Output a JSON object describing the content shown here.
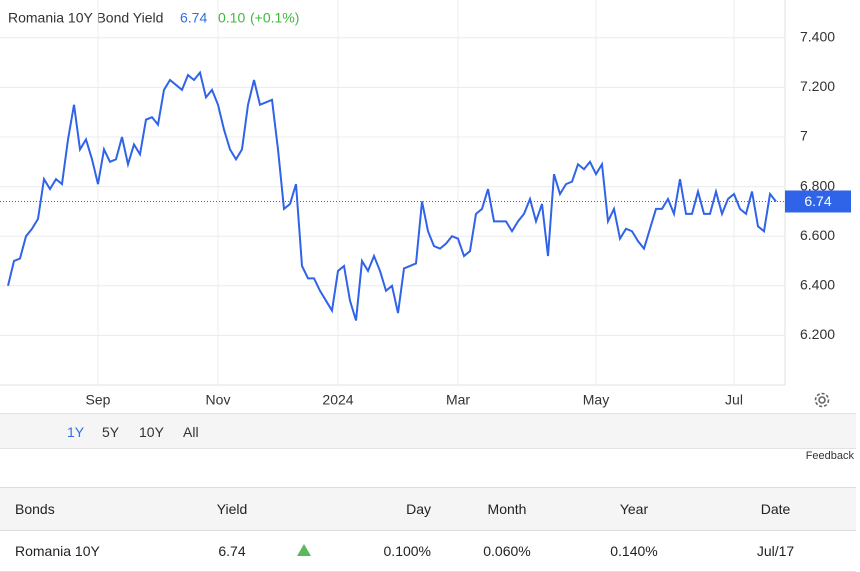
{
  "chart_data": {
    "type": "line",
    "title": "Romania 10Y Bond Yield",
    "price": "6.74",
    "change": "0.10",
    "change_pct": "(+0.1%)",
    "categories": [
      null,
      null,
      null,
      null,
      null,
      null,
      null,
      null,
      null,
      null,
      null,
      null,
      null,
      null,
      null,
      "Sep",
      null,
      null,
      null,
      null,
      null,
      null,
      null,
      null,
      null,
      null,
      null,
      null,
      null,
      null,
      null,
      null,
      null,
      null,
      null,
      "Nov",
      null,
      null,
      null,
      null,
      null,
      null,
      null,
      null,
      null,
      null,
      null,
      null,
      null,
      null,
      null,
      null,
      null,
      null,
      null,
      "2024",
      null,
      null,
      null,
      null,
      null,
      null,
      null,
      null,
      null,
      null,
      null,
      null,
      null,
      null,
      null,
      null,
      null,
      null,
      null,
      "Mar",
      null,
      null,
      null,
      null,
      null,
      null,
      null,
      null,
      null,
      null,
      null,
      null,
      null,
      null,
      null,
      null,
      null,
      null,
      null,
      null,
      null,
      null,
      "May",
      null,
      null,
      null,
      null,
      null,
      null,
      null,
      null,
      null,
      null,
      null,
      null,
      null,
      null,
      null,
      null,
      null,
      null,
      null,
      null,
      null,
      null,
      "Jul",
      null,
      null,
      null,
      null,
      null,
      null,
      null
    ],
    "series": [
      {
        "name": "Romania 10Y",
        "color": "#2f63e8",
        "values": [
          6.4,
          6.5,
          6.51,
          6.6,
          6.63,
          6.67,
          6.83,
          6.79,
          6.83,
          6.81,
          6.99,
          7.13,
          6.95,
          6.99,
          6.91,
          6.81,
          6.95,
          6.9,
          6.91,
          7.0,
          6.89,
          6.97,
          6.93,
          7.07,
          7.08,
          7.05,
          7.19,
          7.23,
          7.21,
          7.19,
          7.25,
          7.23,
          7.26,
          7.16,
          7.19,
          7.13,
          7.03,
          6.95,
          6.91,
          6.95,
          7.13,
          7.23,
          7.13,
          7.14,
          7.15,
          6.95,
          6.71,
          6.73,
          6.81,
          6.48,
          6.43,
          6.43,
          6.38,
          6.34,
          6.3,
          6.46,
          6.48,
          6.34,
          6.26,
          6.5,
          6.46,
          6.52,
          6.46,
          6.38,
          6.4,
          6.29,
          6.47,
          6.48,
          6.49,
          6.74,
          6.62,
          6.56,
          6.55,
          6.57,
          6.6,
          6.59,
          6.52,
          6.54,
          6.69,
          6.71,
          6.79,
          6.66,
          6.66,
          6.66,
          6.62,
          6.66,
          6.69,
          6.75,
          6.66,
          6.73,
          6.52,
          6.85,
          6.77,
          6.81,
          6.82,
          6.89,
          6.87,
          6.9,
          6.85,
          6.89,
          6.66,
          6.71,
          6.59,
          6.63,
          6.62,
          6.58,
          6.55,
          6.63,
          6.71,
          6.71,
          6.75,
          6.69,
          6.83,
          6.69,
          6.69,
          6.78,
          6.69,
          6.69,
          6.78,
          6.69,
          6.75,
          6.77,
          6.71,
          6.69,
          6.78,
          6.64,
          6.62,
          6.77,
          6.74
        ]
      }
    ],
    "ylim": [
      6.0,
      7.5
    ],
    "yticks": [
      {
        "value": 6.2,
        "label": "6.200"
      },
      {
        "value": 6.4,
        "label": "6.400"
      },
      {
        "value": 6.6,
        "label": "6.600"
      },
      {
        "value": 6.8,
        "label": "6.800"
      },
      7,
      {
        "value": 7.2,
        "label": "7.200"
      },
      {
        "value": 7.4,
        "label": "7.400"
      }
    ],
    "grid": true
  },
  "ranges": [
    "1Y",
    "5Y",
    "10Y",
    "All"
  ],
  "feedback": "Feedback",
  "table": {
    "header": [
      "Bonds",
      "Yield",
      "Day",
      "Month",
      "Year",
      "Date"
    ],
    "rows": [
      [
        "Romania 10Y",
        "6.74",
        "0.100%",
        "0.060%",
        "0.140%",
        "Jul/17"
      ]
    ]
  }
}
